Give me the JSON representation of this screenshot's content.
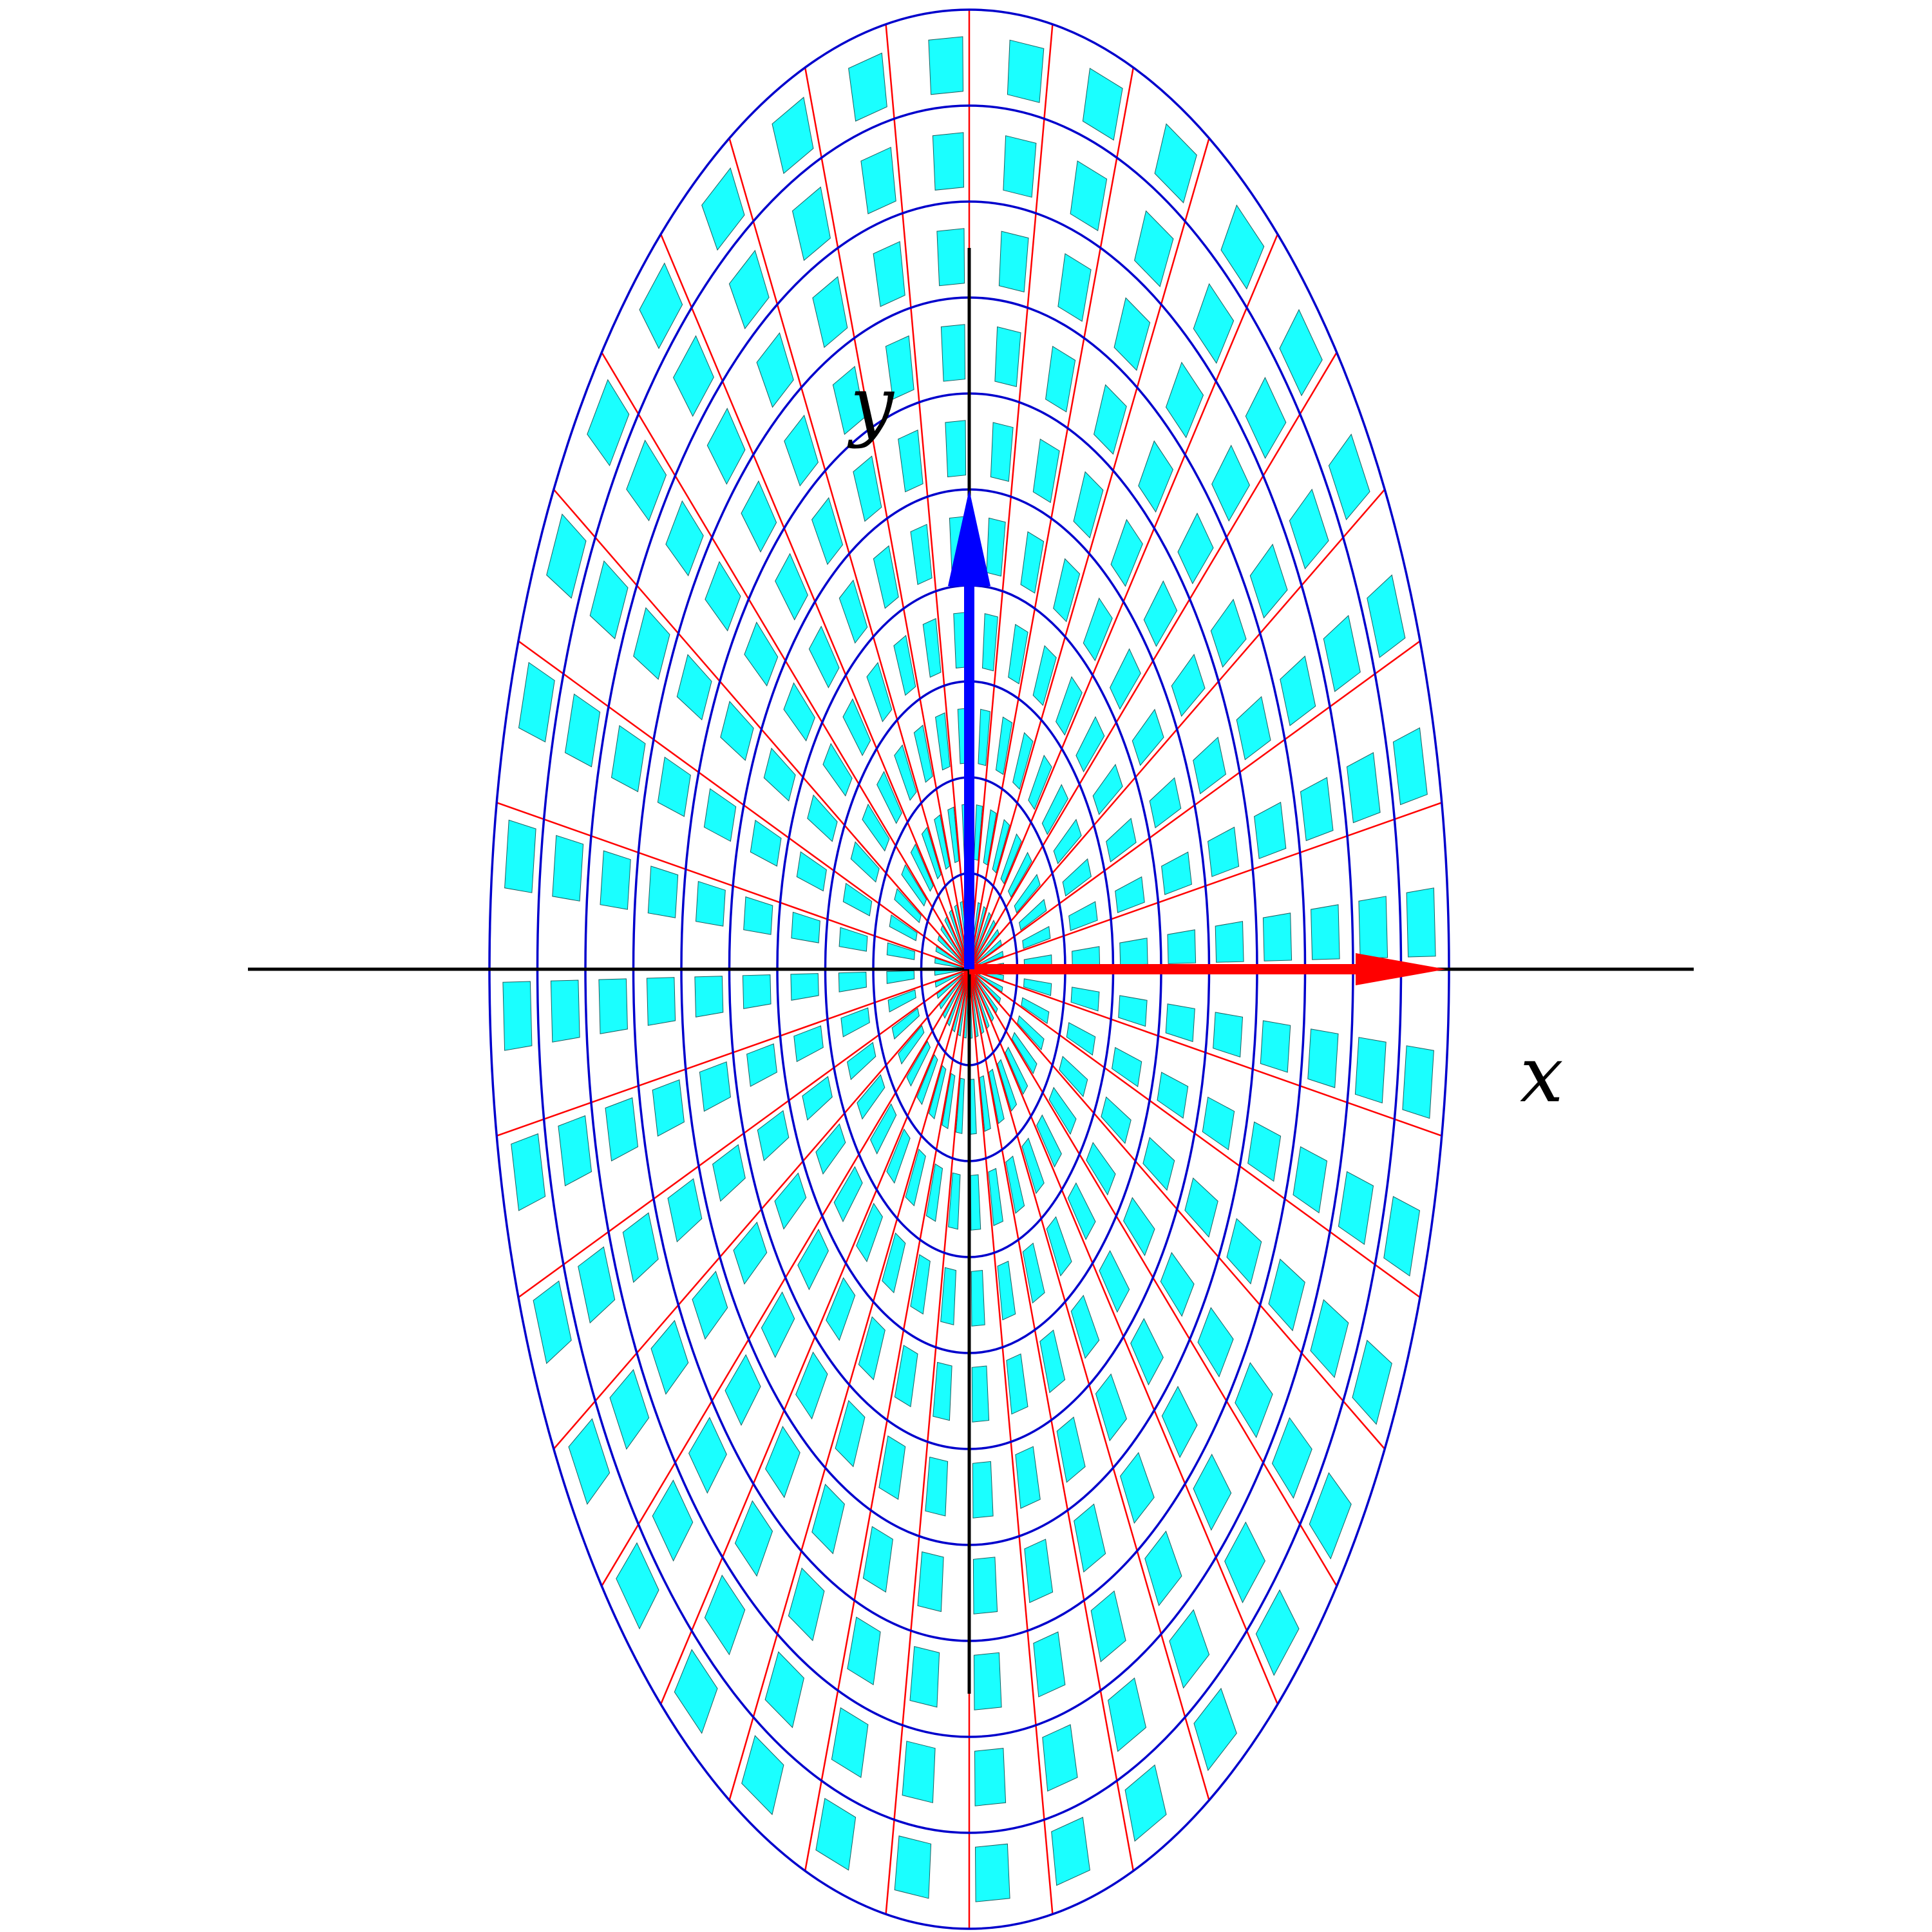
{
  "labels": {
    "x_axis": "x",
    "y_axis": "y"
  },
  "grid": {
    "ellipse_count": 10,
    "spoke_count": 36,
    "cell_segments_per_ring": 36
  },
  "colors": {
    "background": "#ffffff",
    "ellipse_stroke": "#0000cc",
    "spoke_stroke": "#ff0000",
    "cell_fill": "#1affff",
    "cell_stroke": "#1a6060",
    "axis_stroke": "#000000",
    "x_arrow": "#ff0000",
    "y_arrow": "#0000ff"
  }
}
